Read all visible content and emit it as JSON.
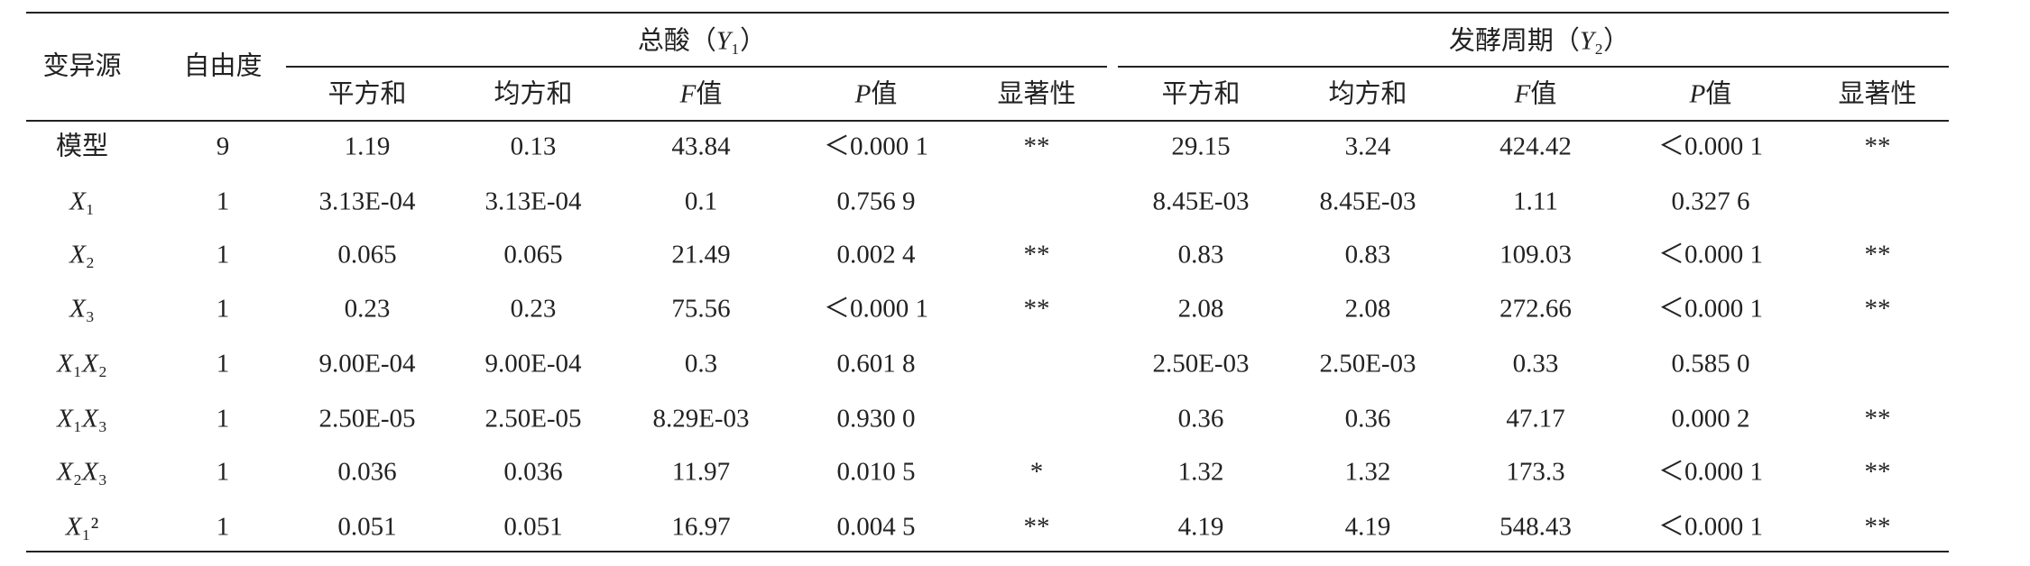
{
  "table": {
    "group_headers": [
      "变异源",
      "自由度",
      "总酸（Y₁）",
      "发酵周期（Y₂）"
    ],
    "columns": [
      "平方和",
      "均方和",
      "F值",
      "P值",
      "显著性",
      "平方和",
      "均方和",
      "F值",
      "P值",
      "显著性"
    ],
    "rows": [
      [
        "模型",
        "9",
        "1.19",
        "0.13",
        "43.84",
        "＜0.000 1",
        "**",
        "29.15",
        "3.24",
        "424.42",
        "＜0.000 1",
        "**"
      ],
      [
        "X₁",
        "1",
        "3.13E-04",
        "3.13E-04",
        "0.1",
        "0.756 9",
        null,
        "8.45E-03",
        "8.45E-03",
        "1.11",
        "0.327 6",
        null
      ],
      [
        "X₂",
        "1",
        "0.065",
        "0.065",
        "21.49",
        "0.002 4",
        "**",
        "0.83",
        "0.83",
        "109.03",
        "＜0.000 1",
        "**"
      ],
      [
        "X₃",
        "1",
        "0.23",
        "0.23",
        "75.56",
        "＜0.000 1",
        "**",
        "2.08",
        "2.08",
        "272.66",
        "＜0.000 1",
        "**"
      ],
      [
        "X₁X₂",
        "1",
        "9.00E-04",
        "9.00E-04",
        "0.3",
        "0.601 8",
        null,
        "2.50E-03",
        "2.50E-03",
        "0.33",
        "0.585 0",
        null
      ],
      [
        "X₁X₃",
        "1",
        "2.50E-05",
        "2.50E-05",
        "8.29E-03",
        "0.930 0",
        null,
        "0.36",
        "0.36",
        "47.17",
        "0.000 2",
        "**"
      ],
      [
        "X₂X₃",
        "1",
        "0.036",
        "0.036",
        "11.97",
        "0.010 5",
        "*",
        "1.32",
        "1.32",
        "173.3",
        "＜0.000 1",
        "**"
      ],
      [
        "X₁²",
        "1",
        "0.051",
        "0.051",
        "16.97",
        "0.004 5",
        "**",
        "4.19",
        "4.19",
        "548.43",
        "＜0.000 1",
        "**"
      ]
    ]
  }
}
